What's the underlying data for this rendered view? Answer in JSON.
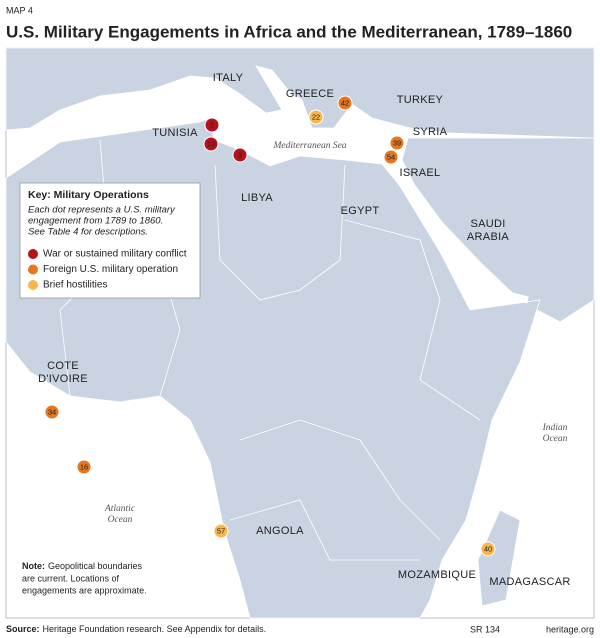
{
  "header": {
    "label": "MAP 4",
    "title": "U.S. Military Engagements in Africa and the Mediterranean, 1789–1860"
  },
  "map": {
    "places": [
      "ITALY",
      "GREECE",
      "TURKEY",
      "TUNISIA",
      "SYRIA",
      "ISRAEL",
      "LIBYA",
      "EGYPT",
      "SAUDI",
      "ARABIA",
      "COTE",
      "D'IVOIRE",
      "ANGOLA",
      "MOZAMBIQUE",
      "MADAGASCAR"
    ],
    "seas": [
      "Mediterranean Sea",
      "Atlantic",
      "Ocean",
      "Indian",
      "Ocean"
    ],
    "markers": [
      {
        "label": "2",
        "category": 0
      },
      {
        "label": "12",
        "category": 0
      },
      {
        "label": "3",
        "category": 0
      },
      {
        "label": "22",
        "category": 2
      },
      {
        "label": "42",
        "category": 1
      },
      {
        "label": "39",
        "category": 1
      },
      {
        "label": "54",
        "category": 1
      },
      {
        "label": "34",
        "category": 1
      },
      {
        "label": "16",
        "category": 1
      },
      {
        "label": "57",
        "category": 2
      },
      {
        "label": "40",
        "category": 2
      }
    ]
  },
  "key": {
    "title": "Key: Military Operations",
    "description": [
      "Each dot represents a U.S. military",
      "engagement from 1789 to 1860.",
      "See Table 4 for descriptions."
    ],
    "items": [
      {
        "label": "War or sustained military conflict",
        "color": "#b5121b"
      },
      {
        "label": "Foreign U.S. military operation",
        "color": "#e8761e"
      },
      {
        "label": "Brief hostilities",
        "color": "#f8b74a"
      }
    ]
  },
  "note": {
    "label": "Note:",
    "lines": [
      "Geopolitical boundaries",
      "are current. Locations of",
      "engagements are approximate."
    ]
  },
  "footer": {
    "source_label": "Source:",
    "source": "Heritage Foundation research. See Appendix for details.",
    "report": "SR 134",
    "site": "heritage.org"
  }
}
